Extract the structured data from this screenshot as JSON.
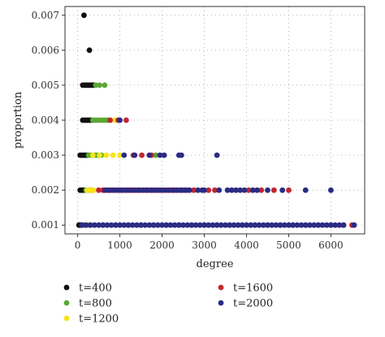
{
  "chart_data": {
    "type": "scatter",
    "xlabel": "degree",
    "ylabel": "proportion",
    "xlim": [
      -300,
      6800
    ],
    "ylim": [
      0.00075,
      0.00725
    ],
    "x_ticks": [
      0,
      1000,
      2000,
      3000,
      4000,
      5000,
      6000
    ],
    "x_tick_labels": [
      "0",
      "1000",
      "2000",
      "3000",
      "4000",
      "5000",
      "6000"
    ],
    "y_ticks": [
      0.001,
      0.002,
      0.003,
      0.004,
      0.005,
      0.006,
      0.007
    ],
    "y_tick_labels": [
      "0.001",
      "0.002",
      "0.003",
      "0.004",
      "0.005",
      "0.006",
      "0.007"
    ],
    "grid": true,
    "grid_style": "dotted",
    "legend_position": "bottom",
    "series": [
      {
        "name": "t=400",
        "color": "#111111",
        "points": [
          [
            150,
            0.007
          ],
          [
            280,
            0.006
          ],
          [
            120,
            0.005
          ],
          [
            150,
            0.005
          ],
          [
            180,
            0.005
          ],
          [
            210,
            0.005
          ],
          [
            240,
            0.005
          ],
          [
            270,
            0.005
          ],
          [
            300,
            0.005
          ],
          [
            330,
            0.005
          ],
          [
            360,
            0.005
          ],
          [
            390,
            0.005
          ],
          [
            120,
            0.004
          ],
          [
            160,
            0.004
          ],
          [
            200,
            0.004
          ],
          [
            240,
            0.004
          ],
          [
            280,
            0.004
          ],
          [
            320,
            0.004
          ],
          [
            60,
            0.003
          ],
          [
            100,
            0.003
          ],
          [
            140,
            0.003
          ],
          [
            180,
            0.003
          ],
          [
            220,
            0.003
          ],
          [
            60,
            0.002
          ],
          [
            100,
            0.002
          ],
          [
            140,
            0.002
          ],
          [
            30,
            0.001
          ],
          [
            60,
            0.001
          ],
          [
            90,
            0.001
          ]
        ]
      },
      {
        "name": "t=800",
        "color": "#5aa832",
        "points": [
          [
            430,
            0.005
          ],
          [
            520,
            0.005
          ],
          [
            640,
            0.005
          ],
          [
            360,
            0.004
          ],
          [
            420,
            0.004
          ],
          [
            480,
            0.004
          ],
          [
            540,
            0.004
          ],
          [
            600,
            0.004
          ],
          [
            660,
            0.004
          ],
          [
            720,
            0.004
          ],
          [
            260,
            0.003
          ],
          [
            320,
            0.003
          ],
          [
            380,
            0.003
          ],
          [
            440,
            0.003
          ],
          [
            500,
            0.003
          ],
          [
            560,
            0.003
          ],
          [
            1850,
            0.003
          ],
          [
            200,
            0.002
          ],
          [
            260,
            0.002
          ],
          [
            320,
            0.002
          ],
          [
            130,
            0.001
          ],
          [
            170,
            0.001
          ]
        ]
      },
      {
        "name": "t=1200",
        "color": "#f5e51b",
        "points": [
          [
            780,
            0.004
          ],
          [
            880,
            0.004
          ],
          [
            980,
            0.004
          ],
          [
            360,
            0.003
          ],
          [
            520,
            0.003
          ],
          [
            680,
            0.003
          ],
          [
            840,
            0.003
          ],
          [
            1000,
            0.003
          ],
          [
            230,
            0.002
          ],
          [
            300,
            0.002
          ],
          [
            380,
            0.002
          ],
          [
            200,
            0.001
          ],
          [
            230,
            0.001
          ]
        ]
      },
      {
        "name": "t=1600",
        "color": "#c1272d",
        "points": [
          [
            770,
            0.004
          ],
          [
            960,
            0.004
          ],
          [
            1150,
            0.004
          ],
          [
            1320,
            0.003
          ],
          [
            1520,
            0.003
          ],
          [
            1750,
            0.003
          ],
          [
            500,
            0.002
          ],
          [
            600,
            0.002
          ],
          [
            700,
            0.002
          ],
          [
            800,
            0.002
          ],
          [
            900,
            0.002
          ],
          [
            1000,
            0.002
          ],
          [
            1100,
            0.002
          ],
          [
            1200,
            0.002
          ],
          [
            1300,
            0.002
          ],
          [
            1400,
            0.002
          ],
          [
            1500,
            0.002
          ],
          [
            1600,
            0.002
          ],
          [
            1700,
            0.002
          ],
          [
            1800,
            0.002
          ],
          [
            1900,
            0.002
          ],
          [
            2000,
            0.002
          ],
          [
            2100,
            0.002
          ],
          [
            2200,
            0.002
          ],
          [
            2300,
            0.002
          ],
          [
            2400,
            0.002
          ],
          [
            2500,
            0.002
          ],
          [
            2600,
            0.002
          ],
          [
            2750,
            0.002
          ],
          [
            3100,
            0.002
          ],
          [
            3250,
            0.002
          ],
          [
            4050,
            0.002
          ],
          [
            4350,
            0.002
          ],
          [
            4650,
            0.002
          ],
          [
            5000,
            0.002
          ],
          [
            300,
            0.001
          ],
          [
            600,
            0.001
          ],
          [
            900,
            0.001
          ],
          [
            1200,
            0.001
          ],
          [
            1500,
            0.001
          ],
          [
            1800,
            0.001
          ],
          [
            2100,
            0.001
          ],
          [
            2400,
            0.001
          ],
          [
            2700,
            0.001
          ],
          [
            3000,
            0.001
          ],
          [
            3300,
            0.001
          ],
          [
            3600,
            0.001
          ],
          [
            3900,
            0.001
          ],
          [
            4200,
            0.001
          ],
          [
            4500,
            0.001
          ],
          [
            4800,
            0.001
          ],
          [
            5100,
            0.001
          ],
          [
            5400,
            0.001
          ],
          [
            5700,
            0.001
          ],
          [
            6000,
            0.001
          ],
          [
            6300,
            0.001
          ],
          [
            6500,
            0.001
          ]
        ]
      },
      {
        "name": "t=2000",
        "color": "#2b2b84",
        "points": [
          [
            1000,
            0.004
          ],
          [
            1100,
            0.003
          ],
          [
            1350,
            0.003
          ],
          [
            1700,
            0.003
          ],
          [
            1950,
            0.003
          ],
          [
            2050,
            0.003
          ],
          [
            2400,
            0.003
          ],
          [
            2460,
            0.003
          ],
          [
            3300,
            0.003
          ],
          [
            650,
            0.002
          ],
          [
            750,
            0.002
          ],
          [
            850,
            0.002
          ],
          [
            950,
            0.002
          ],
          [
            1050,
            0.002
          ],
          [
            1150,
            0.002
          ],
          [
            1250,
            0.002
          ],
          [
            1350,
            0.002
          ],
          [
            1450,
            0.002
          ],
          [
            1550,
            0.002
          ],
          [
            1650,
            0.002
          ],
          [
            1750,
            0.002
          ],
          [
            1850,
            0.002
          ],
          [
            1950,
            0.002
          ],
          [
            2050,
            0.002
          ],
          [
            2150,
            0.002
          ],
          [
            2250,
            0.002
          ],
          [
            2350,
            0.002
          ],
          [
            2450,
            0.002
          ],
          [
            2550,
            0.002
          ],
          [
            2650,
            0.002
          ],
          [
            2850,
            0.002
          ],
          [
            2950,
            0.002
          ],
          [
            3000,
            0.002
          ],
          [
            3350,
            0.002
          ],
          [
            3550,
            0.002
          ],
          [
            3650,
            0.002
          ],
          [
            3750,
            0.002
          ],
          [
            3850,
            0.002
          ],
          [
            3950,
            0.002
          ],
          [
            4150,
            0.002
          ],
          [
            4250,
            0.002
          ],
          [
            4500,
            0.002
          ],
          [
            4850,
            0.002
          ],
          [
            5400,
            0.002
          ],
          [
            6000,
            0.002
          ],
          [
            100,
            0.001
          ],
          [
            200,
            0.001
          ],
          [
            300,
            0.001
          ],
          [
            400,
            0.001
          ],
          [
            500,
            0.001
          ],
          [
            600,
            0.001
          ],
          [
            700,
            0.001
          ],
          [
            800,
            0.001
          ],
          [
            900,
            0.001
          ],
          [
            1000,
            0.001
          ],
          [
            1100,
            0.001
          ],
          [
            1200,
            0.001
          ],
          [
            1300,
            0.001
          ],
          [
            1400,
            0.001
          ],
          [
            1500,
            0.001
          ],
          [
            1600,
            0.001
          ],
          [
            1700,
            0.001
          ],
          [
            1800,
            0.001
          ],
          [
            1900,
            0.001
          ],
          [
            2000,
            0.001
          ],
          [
            2100,
            0.001
          ],
          [
            2200,
            0.001
          ],
          [
            2300,
            0.001
          ],
          [
            2400,
            0.001
          ],
          [
            2500,
            0.001
          ],
          [
            2600,
            0.001
          ],
          [
            2700,
            0.001
          ],
          [
            2800,
            0.001
          ],
          [
            2900,
            0.001
          ],
          [
            3000,
            0.001
          ],
          [
            3100,
            0.001
          ],
          [
            3200,
            0.001
          ],
          [
            3300,
            0.001
          ],
          [
            3400,
            0.001
          ],
          [
            3500,
            0.001
          ],
          [
            3600,
            0.001
          ],
          [
            3700,
            0.001
          ],
          [
            3800,
            0.001
          ],
          [
            3900,
            0.001
          ],
          [
            4000,
            0.001
          ],
          [
            4100,
            0.001
          ],
          [
            4200,
            0.001
          ],
          [
            4300,
            0.001
          ],
          [
            4400,
            0.001
          ],
          [
            4500,
            0.001
          ],
          [
            4600,
            0.001
          ],
          [
            4700,
            0.001
          ],
          [
            4800,
            0.001
          ],
          [
            4900,
            0.001
          ],
          [
            5000,
            0.001
          ],
          [
            5100,
            0.001
          ],
          [
            5200,
            0.001
          ],
          [
            5300,
            0.001
          ],
          [
            5400,
            0.001
          ],
          [
            5500,
            0.001
          ],
          [
            5600,
            0.001
          ],
          [
            5700,
            0.001
          ],
          [
            5800,
            0.001
          ],
          [
            5900,
            0.001
          ],
          [
            6000,
            0.001
          ],
          [
            6100,
            0.001
          ],
          [
            6200,
            0.001
          ],
          [
            6300,
            0.001
          ],
          [
            6550,
            0.001
          ]
        ]
      }
    ],
    "legend_order": [
      "t=400",
      "t=1600",
      "t=800",
      "t=2000",
      "t=1200"
    ]
  }
}
